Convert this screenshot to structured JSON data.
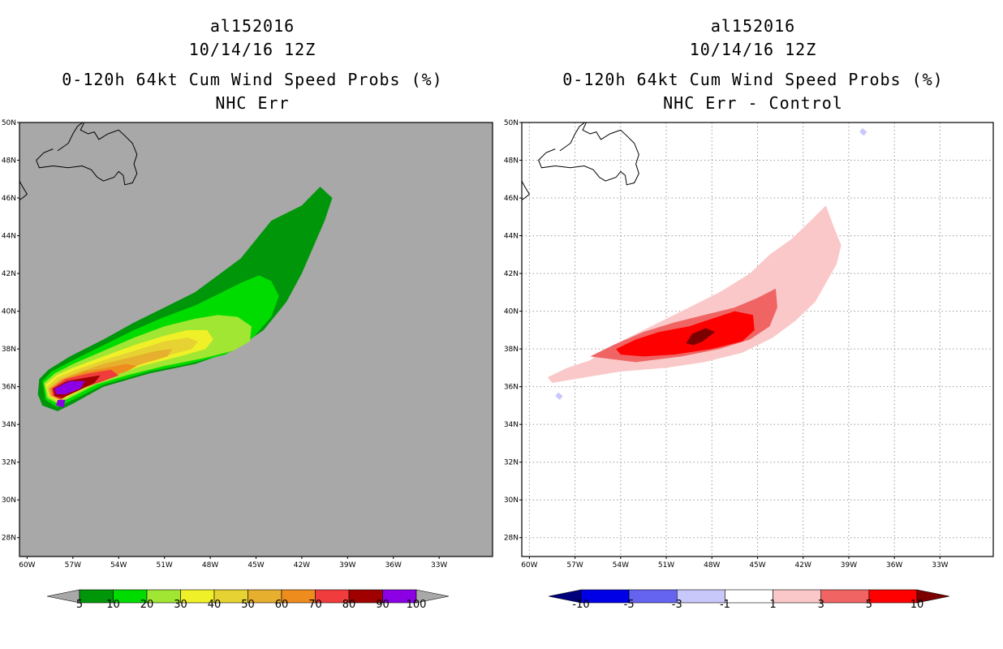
{
  "chart_data": [
    {
      "type": "heatmap",
      "storm_id": "al152016",
      "cycle": "10/14/16 12Z",
      "title": "0-120h 64kt Cum Wind Speed Probs (%)",
      "subtitle": "NHC Err",
      "background_color": "#a8a8a8",
      "x_ticks": [
        "60W",
        "57W",
        "54W",
        "51W",
        "48W",
        "45W",
        "42W",
        "39W",
        "36W",
        "33W"
      ],
      "y_ticks": [
        "50N",
        "48N",
        "46N",
        "44N",
        "42N",
        "40N",
        "38N",
        "36N",
        "34N",
        "32N",
        "30N",
        "28N"
      ],
      "xlim": [
        -60.5,
        -29.5
      ],
      "ylim": [
        27,
        50
      ],
      "grid": false,
      "colorbar": {
        "labels": [
          "5",
          "10",
          "20",
          "30",
          "40",
          "50",
          "60",
          "70",
          "80",
          "90",
          "100"
        ],
        "colors": [
          "#00960a",
          "#00dc00",
          "#a0e632",
          "#f0f028",
          "#e6d232",
          "#e6af2d",
          "#ee8c1e",
          "#f03c3c",
          "#a00000",
          "#8c00e6"
        ],
        "extension_color": "#a8a8a8"
      },
      "contours": [
        {
          "level": 5,
          "color": "#00960a",
          "points": [
            [
              -59.2,
              36.4
            ],
            [
              -58.6,
              36.9
            ],
            [
              -57.2,
              37.6
            ],
            [
              -55.0,
              38.5
            ],
            [
              -53.0,
              39.4
            ],
            [
              -51.0,
              40.2
            ],
            [
              -49.0,
              41.0
            ],
            [
              -47.5,
              41.9
            ],
            [
              -46.0,
              42.8
            ],
            [
              -45.0,
              43.8
            ],
            [
              -44.0,
              44.8
            ],
            [
              -42.0,
              45.6
            ],
            [
              -40.8,
              46.6
            ],
            [
              -40.0,
              46.0
            ],
            [
              -40.5,
              44.8
            ],
            [
              -41.2,
              43.5
            ],
            [
              -42.0,
              42.0
            ],
            [
              -43.0,
              40.5
            ],
            [
              -44.5,
              39.0
            ],
            [
              -46.5,
              37.9
            ],
            [
              -49.0,
              37.2
            ],
            [
              -52.0,
              36.7
            ],
            [
              -55.0,
              36.0
            ],
            [
              -57.0,
              35.1
            ],
            [
              -58.0,
              34.7
            ],
            [
              -59.0,
              35.0
            ],
            [
              -59.3,
              35.6
            ]
          ]
        },
        {
          "level": 10,
          "color": "#00dc00",
          "points": [
            [
              -59.0,
              36.3
            ],
            [
              -58.4,
              36.8
            ],
            [
              -57.0,
              37.4
            ],
            [
              -55.0,
              38.2
            ],
            [
              -53.0,
              39.0
            ],
            [
              -51.0,
              39.7
            ],
            [
              -49.0,
              40.3
            ],
            [
              -47.5,
              40.9
            ],
            [
              -46.0,
              41.5
            ],
            [
              -44.8,
              41.9
            ],
            [
              -44.0,
              41.6
            ],
            [
              -43.5,
              40.8
            ],
            [
              -44.0,
              39.7
            ],
            [
              -45.2,
              38.6
            ],
            [
              -47.0,
              37.7
            ],
            [
              -49.5,
              37.2
            ],
            [
              -52.0,
              36.8
            ],
            [
              -55.0,
              36.1
            ],
            [
              -57.0,
              35.3
            ],
            [
              -58.0,
              34.9
            ],
            [
              -58.8,
              35.3
            ]
          ]
        },
        {
          "level": 20,
          "color": "#a0e632",
          "points": [
            [
              -58.9,
              36.2
            ],
            [
              -58.2,
              36.7
            ],
            [
              -57.0,
              37.2
            ],
            [
              -55.0,
              37.9
            ],
            [
              -53.0,
              38.6
            ],
            [
              -51.0,
              39.2
            ],
            [
              -49.0,
              39.6
            ],
            [
              -47.5,
              39.8
            ],
            [
              -46.2,
              39.7
            ],
            [
              -45.3,
              39.2
            ],
            [
              -45.4,
              38.4
            ],
            [
              -46.5,
              37.9
            ],
            [
              -48.5,
              37.5
            ],
            [
              -51.0,
              37.1
            ],
            [
              -53.5,
              36.6
            ],
            [
              -55.5,
              36.1
            ],
            [
              -57.2,
              35.4
            ],
            [
              -58.0,
              35.1
            ],
            [
              -58.7,
              35.4
            ]
          ]
        },
        {
          "level": 30,
          "color": "#f0f028",
          "points": [
            [
              -58.8,
              36.1
            ],
            [
              -58.1,
              36.6
            ],
            [
              -57.0,
              37.0
            ],
            [
              -55.0,
              37.6
            ],
            [
              -53.0,
              38.2
            ],
            [
              -51.0,
              38.7
            ],
            [
              -49.5,
              39.0
            ],
            [
              -48.2,
              39.0
            ],
            [
              -47.8,
              38.5
            ],
            [
              -48.3,
              38.0
            ],
            [
              -50.0,
              37.6
            ],
            [
              -52.5,
              37.1
            ],
            [
              -55.0,
              36.4
            ],
            [
              -57.0,
              35.6
            ],
            [
              -58.0,
              35.2
            ],
            [
              -58.6,
              35.5
            ]
          ]
        },
        {
          "level": 40,
          "color": "#e6d232",
          "points": [
            [
              -58.7,
              36.0
            ],
            [
              -58.0,
              36.5
            ],
            [
              -56.8,
              36.9
            ],
            [
              -55.0,
              37.4
            ],
            [
              -53.0,
              37.9
            ],
            [
              -51.0,
              38.4
            ],
            [
              -49.5,
              38.6
            ],
            [
              -48.8,
              38.4
            ],
            [
              -49.2,
              38.0
            ],
            [
              -51.0,
              37.6
            ],
            [
              -53.5,
              37.0
            ],
            [
              -55.5,
              36.4
            ],
            [
              -57.2,
              35.7
            ],
            [
              -58.1,
              35.3
            ],
            [
              -58.6,
              35.6
            ]
          ]
        },
        {
          "level": 50,
          "color": "#e6af2d",
          "points": [
            [
              -58.6,
              35.9
            ],
            [
              -57.8,
              36.4
            ],
            [
              -56.5,
              36.8
            ],
            [
              -55.0,
              37.2
            ],
            [
              -53.0,
              37.6
            ],
            [
              -51.5,
              37.9
            ],
            [
              -50.5,
              38.0
            ],
            [
              -50.8,
              37.6
            ],
            [
              -52.5,
              37.2
            ],
            [
              -54.5,
              36.6
            ],
            [
              -56.5,
              35.9
            ],
            [
              -57.8,
              35.4
            ],
            [
              -58.5,
              35.5
            ]
          ]
        },
        {
          "level": 60,
          "color": "#ee8c1e",
          "points": [
            [
              -58.5,
              35.9
            ],
            [
              -57.6,
              36.4
            ],
            [
              -56.2,
              36.8
            ],
            [
              -54.8,
              37.0
            ],
            [
              -53.5,
              37.2
            ],
            [
              -52.8,
              37.1
            ],
            [
              -53.5,
              36.8
            ],
            [
              -55.0,
              36.4
            ],
            [
              -56.8,
              35.8
            ],
            [
              -57.9,
              35.4
            ],
            [
              -58.4,
              35.5
            ]
          ]
        },
        {
          "level": 70,
          "color": "#f03c3c",
          "points": [
            [
              -58.4,
              35.9
            ],
            [
              -57.5,
              36.4
            ],
            [
              -56.0,
              36.7
            ],
            [
              -54.5,
              36.9
            ],
            [
              -54.0,
              36.6
            ],
            [
              -55.0,
              36.3
            ],
            [
              -56.8,
              35.8
            ],
            [
              -57.8,
              35.3
            ],
            [
              -58.3,
              35.5
            ]
          ]
        },
        {
          "level": 80,
          "color": "#a00000",
          "points": [
            [
              -58.3,
              35.9
            ],
            [
              -57.4,
              36.3
            ],
            [
              -56.0,
              36.5
            ],
            [
              -55.2,
              36.6
            ],
            [
              -55.6,
              36.2
            ],
            [
              -56.6,
              35.8
            ],
            [
              -57.7,
              35.4
            ],
            [
              -58.2,
              35.5
            ]
          ]
        },
        {
          "level": 90,
          "color": "#8c00e6",
          "points": [
            [
              -58.2,
              35.9
            ],
            [
              -57.2,
              36.3
            ],
            [
              -56.2,
              36.3
            ],
            [
              -56.5,
              35.9
            ],
            [
              -57.5,
              35.6
            ],
            [
              -58.1,
              35.6
            ]
          ]
        },
        {
          "level": 90,
          "color": "#8c00e6",
          "points": [
            [
              -58.0,
              35.3
            ],
            [
              -57.5,
              35.3
            ],
            [
              -57.6,
              34.9
            ],
            [
              -58.1,
              35.0
            ]
          ]
        }
      ]
    },
    {
      "type": "heatmap",
      "storm_id": "al152016",
      "cycle": "10/14/16 12Z",
      "title": "0-120h 64kt Cum Wind Speed Probs (%)",
      "subtitle": "NHC Err - Control",
      "background_color": "#ffffff",
      "x_ticks": [
        "60W",
        "57W",
        "54W",
        "51W",
        "48W",
        "45W",
        "42W",
        "39W",
        "36W",
        "33W"
      ],
      "y_ticks": [
        "50N",
        "48N",
        "46N",
        "44N",
        "42N",
        "40N",
        "38N",
        "36N",
        "34N",
        "32N",
        "30N",
        "28N"
      ],
      "xlim": [
        -60.5,
        -29.5
      ],
      "ylim": [
        27,
        50
      ],
      "grid": true,
      "colorbar": {
        "labels": [
          "-10",
          "-5",
          "-3",
          "-1",
          "1",
          "3",
          "5",
          "10"
        ],
        "colors": [
          "#0000e6",
          "#6464f0",
          "#c8c8fa",
          "#ffffff",
          "#fac8c8",
          "#f06464",
          "#ff0000"
        ],
        "low_extension_color": "#00007d",
        "high_extension_color": "#7d0000"
      },
      "contours": [
        {
          "level": 1,
          "color": "#fac8c8",
          "points": [
            [
              -58.8,
              36.5
            ],
            [
              -57.5,
              37.0
            ],
            [
              -56.0,
              37.4
            ],
            [
              -55.0,
              38.0
            ],
            [
              -53.0,
              38.8
            ],
            [
              -51.5,
              39.4
            ],
            [
              -49.5,
              40.2
            ],
            [
              -47.5,
              41.0
            ],
            [
              -45.5,
              42.0
            ],
            [
              -44.2,
              43.0
            ],
            [
              -42.8,
              43.8
            ],
            [
              -41.5,
              44.8
            ],
            [
              -40.5,
              45.6
            ],
            [
              -40.0,
              44.5
            ],
            [
              -39.5,
              43.5
            ],
            [
              -39.8,
              42.5
            ],
            [
              -40.5,
              41.5
            ],
            [
              -41.2,
              40.5
            ],
            [
              -42.5,
              39.5
            ],
            [
              -44.0,
              38.6
            ],
            [
              -46.0,
              37.8
            ],
            [
              -48.5,
              37.3
            ],
            [
              -51.0,
              37.0
            ],
            [
              -54.0,
              36.8
            ],
            [
              -57.0,
              36.4
            ],
            [
              -58.5,
              36.2
            ]
          ]
        },
        {
          "level": 3,
          "color": "#f06464",
          "points": [
            [
              -56.0,
              37.6
            ],
            [
              -54.5,
              38.2
            ],
            [
              -52.5,
              38.9
            ],
            [
              -50.5,
              39.4
            ],
            [
              -48.5,
              39.8
            ],
            [
              -46.5,
              40.2
            ],
            [
              -45.0,
              40.7
            ],
            [
              -43.8,
              41.2
            ],
            [
              -43.7,
              40.2
            ],
            [
              -44.2,
              39.2
            ],
            [
              -45.5,
              38.5
            ],
            [
              -47.5,
              38.0
            ],
            [
              -50.0,
              37.6
            ],
            [
              -53.0,
              37.3
            ]
          ]
        },
        {
          "level": 5,
          "color": "#ff0000",
          "points": [
            [
              -54.3,
              38.0
            ],
            [
              -53.0,
              38.5
            ],
            [
              -51.5,
              38.9
            ],
            [
              -49.5,
              39.2
            ],
            [
              -48.0,
              39.6
            ],
            [
              -46.5,
              40.0
            ],
            [
              -45.3,
              39.8
            ],
            [
              -45.2,
              39.0
            ],
            [
              -46.0,
              38.4
            ],
            [
              -48.0,
              38.0
            ],
            [
              -50.5,
              37.7
            ],
            [
              -52.5,
              37.6
            ],
            [
              -54.0,
              37.7
            ]
          ]
        },
        {
          "level": 10,
          "color": "#7d0000",
          "points": [
            [
              -49.7,
              38.3
            ],
            [
              -49.3,
              38.8
            ],
            [
              -48.4,
              39.1
            ],
            [
              -47.8,
              38.9
            ],
            [
              -48.6,
              38.4
            ],
            [
              -49.2,
              38.2
            ]
          ]
        },
        {
          "level": -1,
          "color": "#c8c8fa",
          "points": [
            [
              -58.3,
              35.5
            ],
            [
              -58.0,
              35.3
            ],
            [
              -57.8,
              35.5
            ],
            [
              -58.1,
              35.7
            ]
          ]
        },
        {
          "level": -1,
          "color": "#c8c8fa",
          "points": [
            [
              -38.3,
              49.5
            ],
            [
              -38.0,
              49.3
            ],
            [
              -37.8,
              49.5
            ],
            [
              -38.1,
              49.7
            ]
          ]
        }
      ]
    }
  ]
}
